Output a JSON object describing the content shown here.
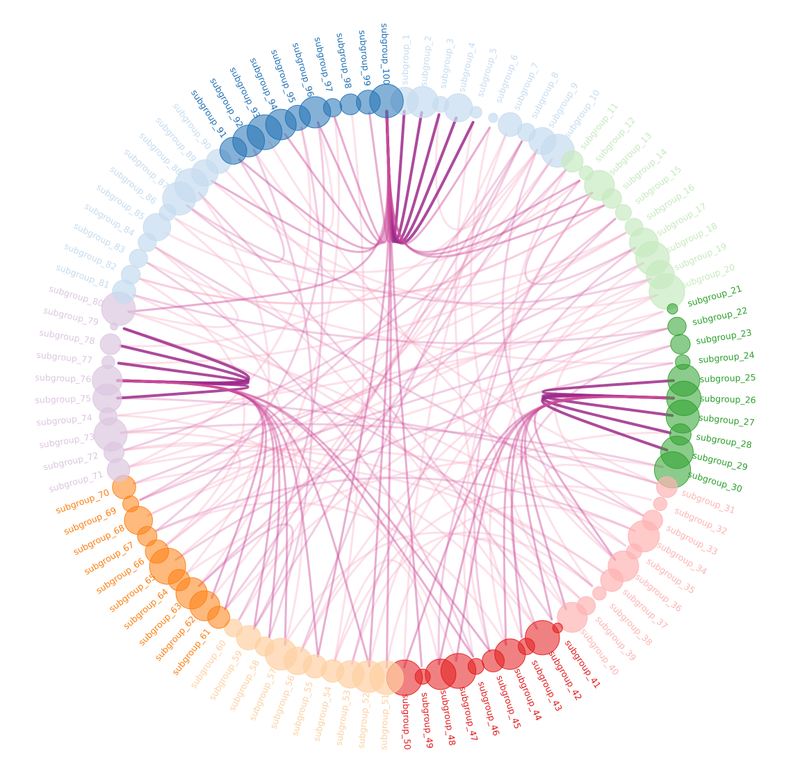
{
  "diagram": {
    "type": "circular-packing-hierarchical-edge-bundling",
    "group_colors": {
      "1": {
        "light": "#c6dbef",
        "dark": "#2171b5"
      },
      "2": {
        "light": "#c7e9c0",
        "dark": "#2ca02c"
      },
      "3": {
        "light": "#fdb4b4",
        "dark": "#e31a1c"
      },
      "4": {
        "light": "#fdd0a2",
        "dark": "#fd7f12"
      },
      "5": {
        "light": "#dcc6e0",
        "dark": "#b58bc4"
      }
    },
    "edge_colors": {
      "strong": "#9e2a8b",
      "mid": "#cc4c9a",
      "weak": "#f7a8c4"
    },
    "nodes": [
      {
        "label": "subgroup_1",
        "group": "1",
        "shade": "light",
        "size": 0.72
      },
      {
        "label": "subgroup_2",
        "group": "1",
        "shade": "light",
        "size": 0.84
      },
      {
        "label": "subgroup_3",
        "group": "1",
        "shade": "light",
        "size": 0.34
      },
      {
        "label": "subgroup_4",
        "group": "1",
        "shade": "light",
        "size": 0.74
      },
      {
        "label": "subgroup_5",
        "group": "1",
        "shade": "light",
        "size": 0.2
      },
      {
        "label": "subgroup_6",
        "group": "1",
        "shade": "light",
        "size": 0.12
      },
      {
        "label": "subgroup_7",
        "group": "1",
        "shade": "light",
        "size": 0.6
      },
      {
        "label": "subgroup_8",
        "group": "1",
        "shade": "light",
        "size": 0.4
      },
      {
        "label": "subgroup_9",
        "group": "1",
        "shade": "light",
        "size": 0.7
      },
      {
        "label": "subgroup_10",
        "group": "1",
        "shade": "light",
        "size": 0.9
      },
      {
        "label": "subgroup_11",
        "group": "2",
        "shade": "light",
        "size": 0.52
      },
      {
        "label": "subgroup_12",
        "group": "2",
        "shade": "light",
        "size": 0.28
      },
      {
        "label": "subgroup_13",
        "group": "2",
        "shade": "light",
        "size": 0.8
      },
      {
        "label": "subgroup_14",
        "group": "2",
        "shade": "light",
        "size": 0.46
      },
      {
        "label": "subgroup_15",
        "group": "2",
        "shade": "light",
        "size": 0.34
      },
      {
        "label": "subgroup_16",
        "group": "2",
        "shade": "light",
        "size": 0.4
      },
      {
        "label": "subgroup_17",
        "group": "2",
        "shade": "light",
        "size": 0.76
      },
      {
        "label": "subgroup_18",
        "group": "2",
        "shade": "light",
        "size": 0.92
      },
      {
        "label": "subgroup_19",
        "group": "2",
        "shade": "light",
        "size": 0.74
      },
      {
        "label": "subgroup_20",
        "group": "2",
        "shade": "light",
        "size": 0.98
      },
      {
        "label": "subgroup_21",
        "group": "2",
        "shade": "dark",
        "size": 0.16
      },
      {
        "label": "subgroup_22",
        "group": "2",
        "shade": "dark",
        "size": 0.42
      },
      {
        "label": "subgroup_23",
        "group": "2",
        "shade": "dark",
        "size": 0.46
      },
      {
        "label": "subgroup_24",
        "group": "2",
        "shade": "dark",
        "size": 0.3
      },
      {
        "label": "subgroup_25",
        "group": "2",
        "shade": "dark",
        "size": 0.86
      },
      {
        "label": "subgroup_26",
        "group": "2",
        "shade": "dark",
        "size": 0.94
      },
      {
        "label": "subgroup_27",
        "group": "2",
        "shade": "dark",
        "size": 0.9
      },
      {
        "label": "subgroup_28",
        "group": "2",
        "shade": "dark",
        "size": 0.52
      },
      {
        "label": "subgroup_29",
        "group": "2",
        "shade": "dark",
        "size": 0.88
      },
      {
        "label": "subgroup_30",
        "group": "2",
        "shade": "dark",
        "size": 1.0
      },
      {
        "label": "subgroup_31",
        "group": "3",
        "shade": "light",
        "size": 0.5
      },
      {
        "label": "subgroup_32",
        "group": "3",
        "shade": "light",
        "size": 0.26
      },
      {
        "label": "subgroup_33",
        "group": "3",
        "shade": "light",
        "size": 0.48
      },
      {
        "label": "subgroup_34",
        "group": "3",
        "shade": "light",
        "size": 0.84
      },
      {
        "label": "subgroup_35",
        "group": "3",
        "shade": "light",
        "size": 0.32
      },
      {
        "label": "subgroup_36",
        "group": "3",
        "shade": "light",
        "size": 0.82
      },
      {
        "label": "subgroup_37",
        "group": "3",
        "shade": "light",
        "size": 0.56
      },
      {
        "label": "subgroup_38",
        "group": "3",
        "shade": "light",
        "size": 0.26
      },
      {
        "label": "subgroup_39",
        "group": "3",
        "shade": "light",
        "size": 0.42
      },
      {
        "label": "subgroup_40",
        "group": "3",
        "shade": "light",
        "size": 0.8
      },
      {
        "label": "subgroup_41",
        "group": "3",
        "shade": "dark",
        "size": 0.14
      },
      {
        "label": "subgroup_42",
        "group": "3",
        "shade": "dark",
        "size": 0.94
      },
      {
        "label": "subgroup_43",
        "group": "3",
        "shade": "dark",
        "size": 0.36
      },
      {
        "label": "subgroup_44",
        "group": "3",
        "shade": "dark",
        "size": 0.82
      },
      {
        "label": "subgroup_45",
        "group": "3",
        "shade": "dark",
        "size": 0.54
      },
      {
        "label": "subgroup_46",
        "group": "3",
        "shade": "dark",
        "size": 0.34
      },
      {
        "label": "subgroup_47",
        "group": "3",
        "shade": "dark",
        "size": 0.96
      },
      {
        "label": "subgroup_48",
        "group": "3",
        "shade": "dark",
        "size": 0.82
      },
      {
        "label": "subgroup_49",
        "group": "3",
        "shade": "dark",
        "size": 0.32
      },
      {
        "label": "subgroup_50",
        "group": "3",
        "shade": "dark",
        "size": 0.98
      },
      {
        "label": "subgroup_51",
        "group": "4",
        "shade": "light",
        "size": 0.92
      },
      {
        "label": "subgroup_52",
        "group": "4",
        "shade": "light",
        "size": 0.86
      },
      {
        "label": "subgroup_53",
        "group": "4",
        "shade": "light",
        "size": 0.72
      },
      {
        "label": "subgroup_54",
        "group": "4",
        "shade": "light",
        "size": 0.56
      },
      {
        "label": "subgroup_55",
        "group": "4",
        "shade": "light",
        "size": 0.58
      },
      {
        "label": "subgroup_56",
        "group": "4",
        "shade": "light",
        "size": 0.72
      },
      {
        "label": "subgroup_57",
        "group": "4",
        "shade": "light",
        "size": 0.86
      },
      {
        "label": "subgroup_58",
        "group": "4",
        "shade": "light",
        "size": 0.44
      },
      {
        "label": "subgroup_59",
        "group": "4",
        "shade": "light",
        "size": 0.62
      },
      {
        "label": "subgroup_60",
        "group": "4",
        "shade": "light",
        "size": 0.4
      },
      {
        "label": "subgroup_61",
        "group": "4",
        "shade": "dark",
        "size": 0.54
      },
      {
        "label": "subgroup_62",
        "group": "4",
        "shade": "dark",
        "size": 0.8
      },
      {
        "label": "subgroup_63",
        "group": "4",
        "shade": "dark",
        "size": 0.84
      },
      {
        "label": "subgroup_64",
        "group": "4",
        "shade": "dark",
        "size": 0.52
      },
      {
        "label": "subgroup_65",
        "group": "4",
        "shade": "dark",
        "size": 1.0
      },
      {
        "label": "subgroup_66",
        "group": "4",
        "shade": "dark",
        "size": 0.58
      },
      {
        "label": "subgroup_67",
        "group": "4",
        "shade": "dark",
        "size": 0.46
      },
      {
        "label": "subgroup_68",
        "group": "4",
        "shade": "dark",
        "size": 0.74
      },
      {
        "label": "subgroup_69",
        "group": "4",
        "shade": "dark",
        "size": 0.34
      },
      {
        "label": "subgroup_70",
        "group": "4",
        "shade": "dark",
        "size": 0.58
      },
      {
        "label": "subgroup_71",
        "group": "5",
        "shade": "light",
        "size": 0.56
      },
      {
        "label": "subgroup_72",
        "group": "5",
        "shade": "light",
        "size": 0.48
      },
      {
        "label": "subgroup_73",
        "group": "5",
        "shade": "light",
        "size": 0.9
      },
      {
        "label": "subgroup_74",
        "group": "5",
        "shade": "light",
        "size": 0.4
      },
      {
        "label": "subgroup_75",
        "group": "5",
        "shade": "light",
        "size": 0.76
      },
      {
        "label": "subgroup_76",
        "group": "5",
        "shade": "light",
        "size": 0.8
      },
      {
        "label": "subgroup_77",
        "group": "5",
        "shade": "light",
        "size": 0.24
      },
      {
        "label": "subgroup_78",
        "group": "5",
        "shade": "light",
        "size": 0.5
      },
      {
        "label": "subgroup_79",
        "group": "5",
        "shade": "light",
        "size": 0.06
      },
      {
        "label": "subgroup_80",
        "group": "5",
        "shade": "light",
        "size": 0.92
      },
      {
        "label": "subgroup_81",
        "group": "1",
        "shade": "light",
        "size": 0.58
      },
      {
        "label": "subgroup_82",
        "group": "1",
        "shade": "light",
        "size": 0.44
      },
      {
        "label": "subgroup_83",
        "group": "1",
        "shade": "light",
        "size": 0.42
      },
      {
        "label": "subgroup_84",
        "group": "1",
        "shade": "light",
        "size": 0.42
      },
      {
        "label": "subgroup_85",
        "group": "1",
        "shade": "light",
        "size": 0.72
      },
      {
        "label": "subgroup_86",
        "group": "1",
        "shade": "light",
        "size": 0.36
      },
      {
        "label": "subgroup_87",
        "group": "1",
        "shade": "light",
        "size": 0.9
      },
      {
        "label": "subgroup_88",
        "group": "1",
        "shade": "light",
        "size": 0.92
      },
      {
        "label": "subgroup_89",
        "group": "1",
        "shade": "light",
        "size": 0.68
      },
      {
        "label": "subgroup_90",
        "group": "1",
        "shade": "light",
        "size": 0.62
      },
      {
        "label": "subgroup_91",
        "group": "1",
        "shade": "dark",
        "size": 0.7
      },
      {
        "label": "subgroup_92",
        "group": "1",
        "shade": "dark",
        "size": 0.86
      },
      {
        "label": "subgroup_93",
        "group": "1",
        "shade": "dark",
        "size": 0.96
      },
      {
        "label": "subgroup_94",
        "group": "1",
        "shade": "dark",
        "size": 0.82
      },
      {
        "label": "subgroup_95",
        "group": "1",
        "shade": "dark",
        "size": 0.64
      },
      {
        "label": "subgroup_96",
        "group": "1",
        "shade": "dark",
        "size": 0.84
      },
      {
        "label": "subgroup_97",
        "group": "1",
        "shade": "dark",
        "size": 0.42
      },
      {
        "label": "subgroup_98",
        "group": "1",
        "shade": "dark",
        "size": 0.5
      },
      {
        "label": "subgroup_99",
        "group": "1",
        "shade": "dark",
        "size": 0.6
      },
      {
        "label": "subgroup_100",
        "group": "1",
        "shade": "dark",
        "size": 0.92
      }
    ],
    "edge_bundles": [
      {
        "hub": "subgroup_100",
        "strength": "strong",
        "targets": [
          "subgroup_2",
          "subgroup_3",
          "subgroup_4",
          "subgroup_5",
          "subgroup_1"
        ]
      },
      {
        "hub": "subgroup_100",
        "strength": "mid",
        "targets": [
          "subgroup_91",
          "subgroup_89",
          "subgroup_13",
          "subgroup_12",
          "subgroup_14",
          "subgroup_49",
          "subgroup_52",
          "subgroup_51",
          "subgroup_55",
          "subgroup_80",
          "subgroup_94",
          "subgroup_96",
          "subgroup_97",
          "subgroup_99",
          "subgroup_6"
        ]
      },
      {
        "hub": "subgroup_76",
        "strength": "strong",
        "targets": [
          "subgroup_77",
          "subgroup_78",
          "subgroup_75",
          "subgroup_79"
        ]
      },
      {
        "hub": "subgroup_76",
        "strength": "mid",
        "targets": [
          "subgroup_52",
          "subgroup_55",
          "subgroup_59",
          "subgroup_45",
          "subgroup_46",
          "subgroup_61",
          "subgroup_58",
          "subgroup_57",
          "subgroup_62"
        ]
      },
      {
        "hub": "subgroup_26",
        "strength": "strong",
        "targets": [
          "subgroup_25",
          "subgroup_27",
          "subgroup_28",
          "subgroup_29"
        ]
      },
      {
        "hub": "subgroup_26",
        "strength": "mid",
        "targets": [
          "subgroup_36",
          "subgroup_41",
          "subgroup_43",
          "subgroup_47",
          "subgroup_50",
          "subgroup_40",
          "subgroup_44",
          "subgroup_48"
        ]
      }
    ],
    "edges": [
      [
        "subgroup_93",
        "subgroup_35"
      ],
      [
        "subgroup_92",
        "subgroup_58"
      ],
      [
        "subgroup_90",
        "subgroup_31"
      ],
      [
        "subgroup_88",
        "subgroup_64"
      ],
      [
        "subgroup_87",
        "subgroup_19"
      ],
      [
        "subgroup_86",
        "subgroup_42"
      ],
      [
        "subgroup_85",
        "subgroup_16"
      ],
      [
        "subgroup_84",
        "subgroup_33"
      ],
      [
        "subgroup_83",
        "subgroup_24"
      ],
      [
        "subgroup_82",
        "subgroup_66"
      ],
      [
        "subgroup_81",
        "subgroup_22"
      ],
      [
        "subgroup_81",
        "subgroup_39"
      ],
      [
        "subgroup_74",
        "subgroup_21"
      ],
      [
        "subgroup_73",
        "subgroup_30"
      ],
      [
        "subgroup_72",
        "subgroup_37"
      ],
      [
        "subgroup_71",
        "subgroup_20"
      ],
      [
        "subgroup_70",
        "subgroup_18"
      ],
      [
        "subgroup_69",
        "subgroup_17"
      ],
      [
        "subgroup_68",
        "subgroup_23"
      ],
      [
        "subgroup_67",
        "subgroup_34"
      ],
      [
        "subgroup_66",
        "subgroup_10"
      ],
      [
        "subgroup_65",
        "subgroup_11"
      ],
      [
        "subgroup_63",
        "subgroup_15"
      ],
      [
        "subgroup_62",
        "subgroup_9"
      ],
      [
        "subgroup_60",
        "subgroup_7"
      ],
      [
        "subgroup_56",
        "subgroup_8"
      ],
      [
        "subgroup_54",
        "subgroup_32"
      ],
      [
        "subgroup_53",
        "subgroup_38"
      ],
      [
        "subgroup_95",
        "subgroup_60"
      ],
      [
        "subgroup_98",
        "subgroup_54"
      ],
      [
        "subgroup_97",
        "subgroup_63"
      ],
      [
        "subgroup_96",
        "subgroup_67"
      ],
      [
        "subgroup_95",
        "subgroup_71"
      ],
      [
        "subgroup_89",
        "subgroup_20"
      ],
      [
        "subgroup_88",
        "subgroup_41"
      ],
      [
        "subgroup_86",
        "subgroup_12"
      ],
      [
        "subgroup_84",
        "subgroup_57"
      ],
      [
        "subgroup_83",
        "subgroup_46"
      ],
      [
        "subgroup_82",
        "subgroup_14"
      ],
      [
        "subgroup_80",
        "subgroup_35"
      ],
      [
        "subgroup_79",
        "subgroup_38"
      ],
      [
        "subgroup_78",
        "subgroup_9"
      ],
      [
        "subgroup_77",
        "subgroup_16"
      ],
      [
        "subgroup_75",
        "subgroup_31"
      ],
      [
        "subgroup_74",
        "subgroup_47"
      ],
      [
        "subgroup_73",
        "subgroup_42"
      ],
      [
        "subgroup_72",
        "subgroup_11"
      ],
      [
        "subgroup_71",
        "subgroup_33"
      ],
      [
        "subgroup_70",
        "subgroup_37"
      ],
      [
        "subgroup_69",
        "subgroup_8"
      ],
      [
        "subgroup_68",
        "subgroup_19"
      ],
      [
        "subgroup_67",
        "subgroup_44"
      ],
      [
        "subgroup_65",
        "subgroup_24"
      ],
      [
        "subgroup_64",
        "subgroup_30"
      ],
      [
        "subgroup_61",
        "subgroup_22"
      ],
      [
        "subgroup_59",
        "subgroup_10"
      ],
      [
        "subgroup_57",
        "subgroup_39"
      ],
      [
        "subgroup_56",
        "subgroup_21"
      ],
      [
        "subgroup_53",
        "subgroup_15"
      ],
      [
        "subgroup_51",
        "subgroup_34"
      ],
      [
        "subgroup_50",
        "subgroup_7"
      ],
      [
        "subgroup_48",
        "subgroup_17"
      ],
      [
        "subgroup_46",
        "subgroup_13"
      ],
      [
        "subgroup_44",
        "subgroup_18"
      ],
      [
        "subgroup_42",
        "subgroup_23"
      ],
      [
        "subgroup_40",
        "subgroup_6"
      ],
      [
        "subgroup_38",
        "subgroup_11"
      ],
      [
        "subgroup_36",
        "subgroup_9"
      ],
      [
        "subgroup_33",
        "subgroup_20"
      ],
      [
        "subgroup_92",
        "subgroup_96"
      ],
      [
        "subgroup_87",
        "subgroup_91"
      ],
      [
        "subgroup_84",
        "subgroup_80"
      ],
      [
        "subgroup_72",
        "subgroup_66"
      ],
      [
        "subgroup_63",
        "subgroup_59"
      ],
      [
        "subgroup_45",
        "subgroup_40"
      ],
      [
        "subgroup_3",
        "subgroup_9"
      ],
      [
        "subgroup_12",
        "subgroup_17"
      ],
      [
        "subgroup_31",
        "subgroup_36"
      ],
      [
        "subgroup_54",
        "subgroup_48"
      ],
      [
        "subgroup_13",
        "subgroup_45"
      ],
      [
        "subgroup_19",
        "subgroup_52"
      ],
      [
        "subgroup_28",
        "subgroup_56"
      ],
      [
        "subgroup_22",
        "subgroup_69"
      ],
      [
        "subgroup_16",
        "subgroup_73"
      ],
      [
        "subgroup_14",
        "subgroup_82"
      ],
      [
        "subgroup_8",
        "subgroup_61"
      ],
      [
        "subgroup_5",
        "subgroup_43"
      ]
    ]
  }
}
